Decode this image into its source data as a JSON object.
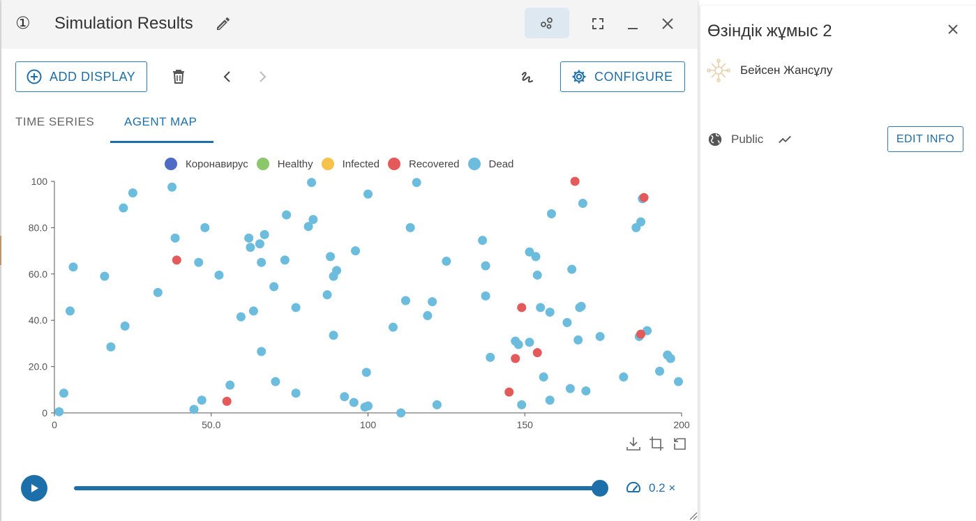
{
  "panel": {
    "step_number": "①",
    "title": "Simulation Results"
  },
  "toolbar": {
    "add_display_label": "ADD DISPLAY",
    "configure_label": "CONFIGURE"
  },
  "tabs": [
    {
      "label": "TIME SERIES",
      "active": false
    },
    {
      "label": "AGENT MAP",
      "active": true
    }
  ],
  "legend": [
    {
      "label": "Коронавирус",
      "color": "#4f6bc4"
    },
    {
      "label": "Healthy",
      "color": "#8bc86a"
    },
    {
      "label": "Infected",
      "color": "#f7c24b"
    },
    {
      "label": "Recovered",
      "color": "#e45a5a"
    },
    {
      "label": "Dead",
      "color": "#6cbcde"
    }
  ],
  "chart_data": {
    "type": "scatter",
    "xlim": [
      0,
      200
    ],
    "ylim": [
      0,
      100
    ],
    "x_ticks": [
      "0",
      "50.0",
      "100",
      "150",
      "200"
    ],
    "y_ticks": [
      "0",
      "20.0",
      "40.0",
      "60.0",
      "80.0",
      "100"
    ],
    "grid": false,
    "legend_position": "top",
    "series": [
      {
        "name": "Recovered",
        "color": "#e45a5a",
        "points": [
          [
            39,
            66
          ],
          [
            55,
            5
          ],
          [
            145,
            9
          ],
          [
            147,
            23.5
          ],
          [
            149,
            45.5
          ],
          [
            154,
            26
          ],
          [
            166,
            100
          ],
          [
            188,
            93
          ],
          [
            187,
            34
          ]
        ]
      },
      {
        "name": "Dead",
        "color": "#6cbcde",
        "points": [
          [
            1.5,
            0.5
          ],
          [
            3,
            8.5
          ],
          [
            5,
            44
          ],
          [
            6,
            63
          ],
          [
            16,
            59
          ],
          [
            18,
            28.5
          ],
          [
            22,
            88.5
          ],
          [
            22.5,
            37.5
          ],
          [
            25,
            95
          ],
          [
            33,
            52
          ],
          [
            37.5,
            97.5
          ],
          [
            38.5,
            75.5
          ],
          [
            44.5,
            1.5
          ],
          [
            46,
            65
          ],
          [
            47,
            5.5
          ],
          [
            48,
            80
          ],
          [
            52.5,
            59.5
          ],
          [
            56,
            12
          ],
          [
            59.5,
            41.5
          ],
          [
            62,
            75.5
          ],
          [
            62.5,
            71.5
          ],
          [
            63.5,
            44
          ],
          [
            65.5,
            73
          ],
          [
            66,
            26.5
          ],
          [
            66,
            65
          ],
          [
            67,
            77
          ],
          [
            70,
            54.5
          ],
          [
            70.5,
            13.5
          ],
          [
            73.5,
            66
          ],
          [
            74,
            85.5
          ],
          [
            77,
            8.5
          ],
          [
            77,
            45.5
          ],
          [
            81,
            80.5
          ],
          [
            82,
            99.5
          ],
          [
            82.5,
            83.5
          ],
          [
            87,
            51
          ],
          [
            88,
            67.5
          ],
          [
            89,
            33.5
          ],
          [
            89,
            59
          ],
          [
            90,
            61.5
          ],
          [
            92.5,
            7
          ],
          [
            95.5,
            4.5
          ],
          [
            96,
            70
          ],
          [
            99,
            2.5
          ],
          [
            99.5,
            17.5
          ],
          [
            100,
            3
          ],
          [
            100,
            94.5
          ],
          [
            108,
            37
          ],
          [
            110.5,
            0
          ],
          [
            112,
            48.5
          ],
          [
            113.5,
            80
          ],
          [
            115.5,
            99.5
          ],
          [
            119,
            42
          ],
          [
            120.5,
            48
          ],
          [
            122,
            3.5
          ],
          [
            125,
            65.5
          ],
          [
            136.5,
            74.5
          ],
          [
            137.5,
            63.5
          ],
          [
            137.5,
            50.5
          ],
          [
            139,
            24
          ],
          [
            147,
            31
          ],
          [
            148,
            29.5
          ],
          [
            149,
            3.5
          ],
          [
            151.5,
            69.5
          ],
          [
            151.5,
            30.5
          ],
          [
            153.5,
            67.5
          ],
          [
            154,
            59.5
          ],
          [
            155,
            45.5
          ],
          [
            156,
            15.5
          ],
          [
            158,
            5.5
          ],
          [
            158,
            43.5
          ],
          [
            158.5,
            86
          ],
          [
            163.5,
            39
          ],
          [
            164.5,
            10.5
          ],
          [
            165,
            62
          ],
          [
            167,
            31.5
          ],
          [
            167.5,
            45.5
          ],
          [
            168,
            46
          ],
          [
            168.5,
            90.5
          ],
          [
            169.5,
            9.5
          ],
          [
            174,
            33
          ],
          [
            181.5,
            15.5
          ],
          [
            185.5,
            80
          ],
          [
            186.5,
            33
          ],
          [
            187,
            82.5
          ],
          [
            187.5,
            92.5
          ],
          [
            189,
            35.5
          ],
          [
            193,
            18
          ],
          [
            195.5,
            25
          ],
          [
            196.5,
            23.5
          ],
          [
            199,
            13.5
          ]
        ]
      }
    ]
  },
  "playback": {
    "progress": 1.0,
    "speed_label": "0.2 ×"
  },
  "side_panel": {
    "title": "Өзіндік жұмыс 2",
    "author": "Бейсен Жансұлу",
    "visibility": "Public",
    "edit_info_label": "EDIT INFO"
  }
}
